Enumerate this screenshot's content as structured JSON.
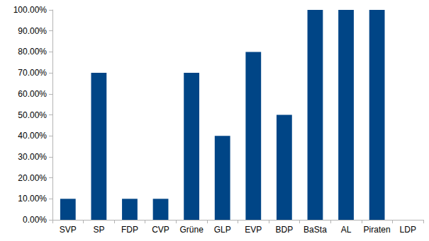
{
  "chart_data": {
    "type": "bar",
    "categories": [
      "SVP",
      "SP",
      "FDP",
      "CVP",
      "Grüne",
      "GLP",
      "EVP",
      "BDP",
      "BaSta",
      "AL",
      "Piraten",
      "LDP"
    ],
    "values": [
      10,
      70,
      10,
      10,
      70,
      40,
      80,
      50,
      100,
      100,
      100,
      0
    ],
    "color": "#004586",
    "ylim": [
      0,
      100
    ],
    "yticks": [
      {
        "value": 0,
        "label": "0.00%"
      },
      {
        "value": 10,
        "label": "10.00%"
      },
      {
        "value": 20,
        "label": "20.00%"
      },
      {
        "value": 30,
        "label": "30.00%"
      },
      {
        "value": 40,
        "label": "40.00%"
      },
      {
        "value": 50,
        "label": "50.00%"
      },
      {
        "value": 60,
        "label": "60.00%"
      },
      {
        "value": 70,
        "label": "70.00%"
      },
      {
        "value": 80,
        "label": "80.00%"
      },
      {
        "value": 90,
        "label": "90.00%"
      },
      {
        "value": 100,
        "label": "100.00%"
      }
    ],
    "grid": false
  }
}
